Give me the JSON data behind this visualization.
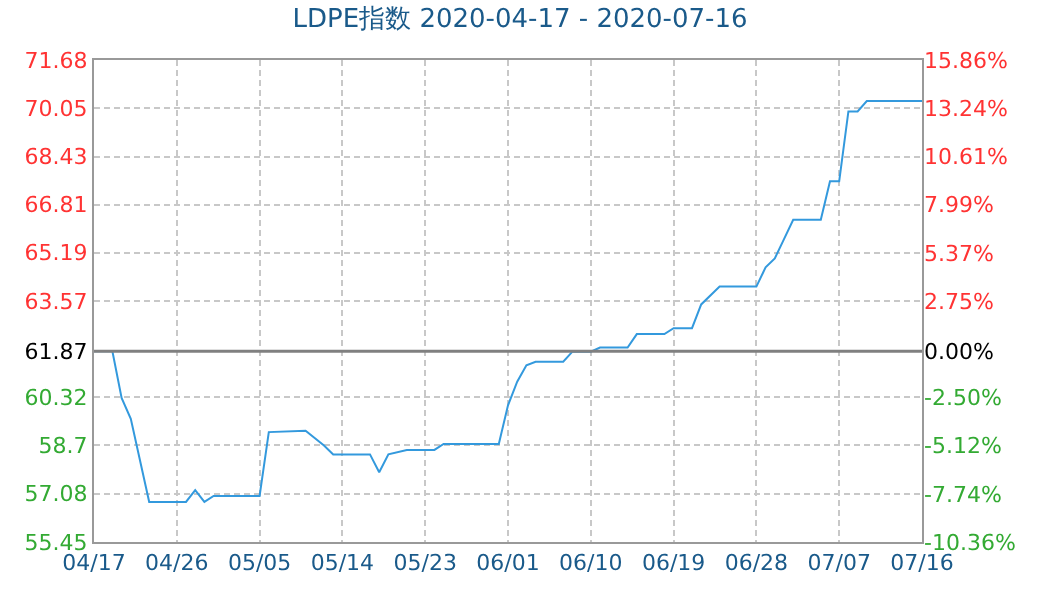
{
  "chart_data": {
    "type": "line",
    "title": "LDPE指数 2020-04-17 - 2020-07-16",
    "x": [
      "2020-04-17",
      "2020-04-19",
      "2020-04-20",
      "2020-04-21",
      "2020-04-23",
      "2020-04-27",
      "2020-04-28",
      "2020-04-29",
      "2020-04-30",
      "2020-05-05",
      "2020-05-06",
      "2020-05-10",
      "2020-05-12",
      "2020-05-13",
      "2020-05-17",
      "2020-05-18",
      "2020-05-19",
      "2020-05-21",
      "2020-05-24",
      "2020-05-25",
      "2020-05-31",
      "2020-06-01",
      "2020-06-02",
      "2020-06-03",
      "2020-06-04",
      "2020-06-07",
      "2020-06-08",
      "2020-06-10",
      "2020-06-11",
      "2020-06-14",
      "2020-06-15",
      "2020-06-18",
      "2020-06-19",
      "2020-06-21",
      "2020-06-22",
      "2020-06-24",
      "2020-06-28",
      "2020-06-29",
      "2020-06-30",
      "2020-07-01",
      "2020-07-02",
      "2020-07-05",
      "2020-07-06",
      "2020-07-07",
      "2020-07-08",
      "2020-07-09",
      "2020-07-10",
      "2020-07-16"
    ],
    "series": [
      {
        "color": "#3399dd",
        "values": [
          61.87,
          61.87,
          60.3,
          59.6,
          56.8,
          56.8,
          57.2,
          56.8,
          57.0,
          57.0,
          59.15,
          59.2,
          58.7,
          58.4,
          58.4,
          57.8,
          58.4,
          58.55,
          58.55,
          58.75,
          58.75,
          60.05,
          60.85,
          61.4,
          61.52,
          61.52,
          61.86,
          61.86,
          62.0,
          62.0,
          62.45,
          62.45,
          62.65,
          62.65,
          63.45,
          64.05,
          64.05,
          64.7,
          65.0,
          65.65,
          66.3,
          66.3,
          67.6,
          67.6,
          69.95,
          69.95,
          70.3,
          70.3
        ]
      }
    ],
    "xlim": [
      "2020-04-17",
      "2020-07-16"
    ],
    "xticks": [
      {
        "value": "2020-04-17",
        "label": "04/17"
      },
      {
        "value": "2020-04-26",
        "label": "04/26"
      },
      {
        "value": "2020-05-05",
        "label": "05/05"
      },
      {
        "value": "2020-05-14",
        "label": "05/14"
      },
      {
        "value": "2020-05-23",
        "label": "05/23"
      },
      {
        "value": "2020-06-01",
        "label": "06/01"
      },
      {
        "value": "2020-06-10",
        "label": "06/10"
      },
      {
        "value": "2020-06-19",
        "label": "06/19"
      },
      {
        "value": "2020-06-28",
        "label": "06/28"
      },
      {
        "value": "2020-07-07",
        "label": "07/07"
      },
      {
        "value": "2020-07-16",
        "label": "07/16"
      }
    ],
    "ylim": [
      55.45,
      71.68
    ],
    "yticks": [
      55.45,
      57.08,
      58.7,
      60.32,
      61.87,
      63.57,
      65.19,
      66.81,
      68.43,
      70.05,
      71.68
    ],
    "y2lim": [
      -10.36,
      15.86
    ],
    "y2ticks": [
      {
        "value": -10.36,
        "label": "-10.36%"
      },
      {
        "value": -7.74,
        "label": "-7.74%"
      },
      {
        "value": -5.12,
        "label": "-5.12%"
      },
      {
        "value": -2.5,
        "label": "-2.50%"
      },
      {
        "value": 0,
        "label": "0.00%"
      },
      {
        "value": 2.75,
        "label": "2.75%"
      },
      {
        "value": 5.37,
        "label": "5.37%"
      },
      {
        "value": 7.99,
        "label": "7.99%"
      },
      {
        "value": 10.61,
        "label": "10.61%"
      },
      {
        "value": 13.24,
        "label": "13.24%"
      },
      {
        "value": 15.86,
        "label": "15.86%"
      }
    ],
    "ref_lines": [
      {
        "axis": "y",
        "value": 61.87,
        "color": "#808080"
      }
    ],
    "grid": true,
    "marker": "none",
    "line_style": "solid"
  }
}
